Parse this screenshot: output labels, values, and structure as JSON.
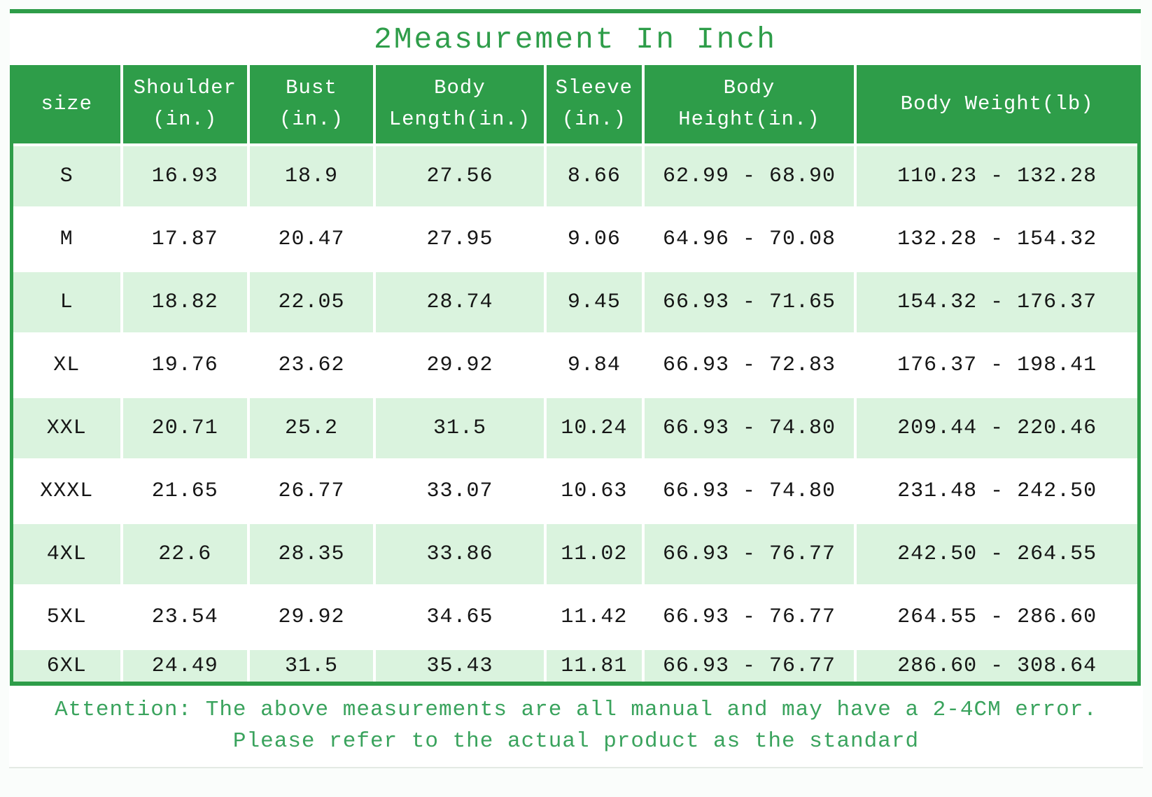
{
  "title": "2Measurement In Inch",
  "colors": {
    "accent_green": "#2E9D49",
    "row_light_green": "#DAF3DE",
    "note_green": "#3AA35D"
  },
  "table": {
    "columns": [
      "size",
      "Shoulder\n(in.)",
      "Bust\n(in.)",
      "Body\nLength(in.)",
      "Sleeve\n(in.)",
      "Body\nHeight(in.)",
      "Body Weight(lb)"
    ],
    "rows": [
      [
        "S",
        "16.93",
        "18.9",
        "27.56",
        "8.66",
        "62.99 - 68.90",
        "110.23 - 132.28"
      ],
      [
        "M",
        "17.87",
        "20.47",
        "27.95",
        "9.06",
        "64.96 - 70.08",
        "132.28 - 154.32"
      ],
      [
        "L",
        "18.82",
        "22.05",
        "28.74",
        "9.45",
        "66.93 - 71.65",
        "154.32 - 176.37"
      ],
      [
        "XL",
        "19.76",
        "23.62",
        "29.92",
        "9.84",
        "66.93 - 72.83",
        "176.37 - 198.41"
      ],
      [
        "XXL",
        "20.71",
        "25.2",
        "31.5",
        "10.24",
        "66.93 - 74.80",
        "209.44 - 220.46"
      ],
      [
        "XXXL",
        "21.65",
        "26.77",
        "33.07",
        "10.63",
        "66.93 - 74.80",
        "231.48 - 242.50"
      ],
      [
        "4XL",
        "22.6",
        "28.35",
        "33.86",
        "11.02",
        "66.93 - 76.77",
        "242.50 - 264.55"
      ],
      [
        "5XL",
        "23.54",
        "29.92",
        "34.65",
        "11.42",
        "66.93 - 76.77",
        "264.55 - 286.60"
      ],
      [
        "6XL",
        "24.49",
        "31.5",
        "35.43",
        "11.81",
        "66.93 - 76.77",
        "286.60 - 308.64"
      ]
    ]
  },
  "note": {
    "line1": "Attention: The above measurements are all manual and may have a 2-4CM error.",
    "line2": "Please refer to the actual product as the standard"
  }
}
